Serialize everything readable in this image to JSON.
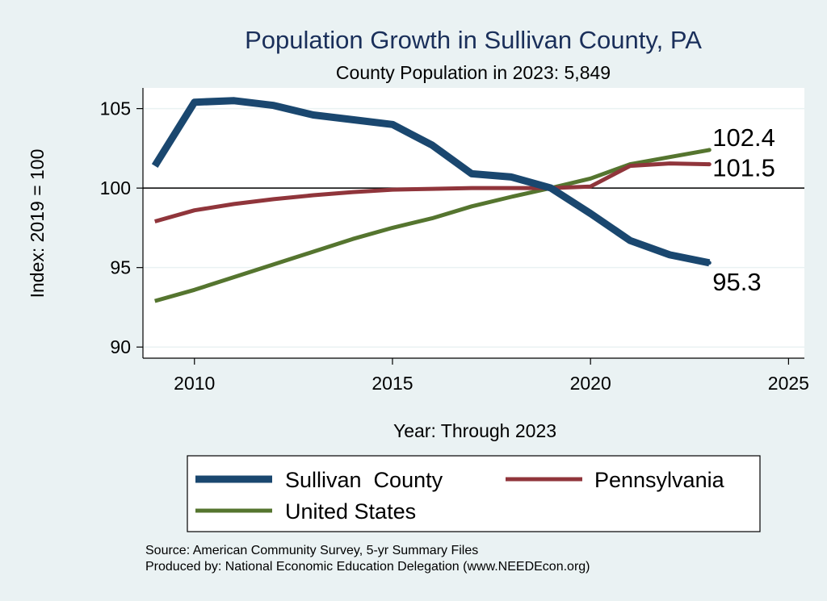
{
  "chart_data": {
    "type": "line",
    "title": "Population Growth in Sullivan County, PA",
    "subtitle": "County Population in 2023: 5,849",
    "xlabel": "Year: Through 2023",
    "ylabel": "Index: 2019 = 100",
    "xlim": [
      2008.7,
      2025.4
    ],
    "ylim": [
      89.3,
      106.3
    ],
    "xticks": [
      2010,
      2015,
      2020,
      2025
    ],
    "yticks": [
      90,
      95,
      100,
      105
    ],
    "reference_line": 100,
    "grid": true,
    "legend_position": "bottom",
    "x": [
      2009,
      2010,
      2011,
      2012,
      2013,
      2014,
      2015,
      2016,
      2017,
      2018,
      2019,
      2020,
      2021,
      2022,
      2023
    ],
    "series": [
      {
        "name": "Sullivan  County",
        "color": "#1a476f",
        "values": [
          101.4,
          105.4,
          105.5,
          105.2,
          104.6,
          104.3,
          104.0,
          102.7,
          100.9,
          100.7,
          100.0,
          98.4,
          96.7,
          95.8,
          95.3
        ],
        "end_label": "95.3"
      },
      {
        "name": "Pennsylvania",
        "color": "#90353b",
        "values": [
          97.9,
          98.6,
          99.0,
          99.3,
          99.55,
          99.75,
          99.9,
          99.95,
          100.0,
          100.0,
          100.0,
          100.1,
          101.4,
          101.55,
          101.5
        ],
        "end_label": "101.5"
      },
      {
        "name": "United States",
        "color": "#55752f",
        "values": [
          92.9,
          93.6,
          94.4,
          95.2,
          96.0,
          96.8,
          97.5,
          98.1,
          98.85,
          99.45,
          100.0,
          100.6,
          101.5,
          101.95,
          102.4
        ],
        "end_label": "102.4"
      }
    ]
  },
  "source_note": "Source: American Community Survey, 5-yr Summary Files",
  "producer_note": "Produced by: National Economic Education Delegation (www.NEEDEcon.org)"
}
